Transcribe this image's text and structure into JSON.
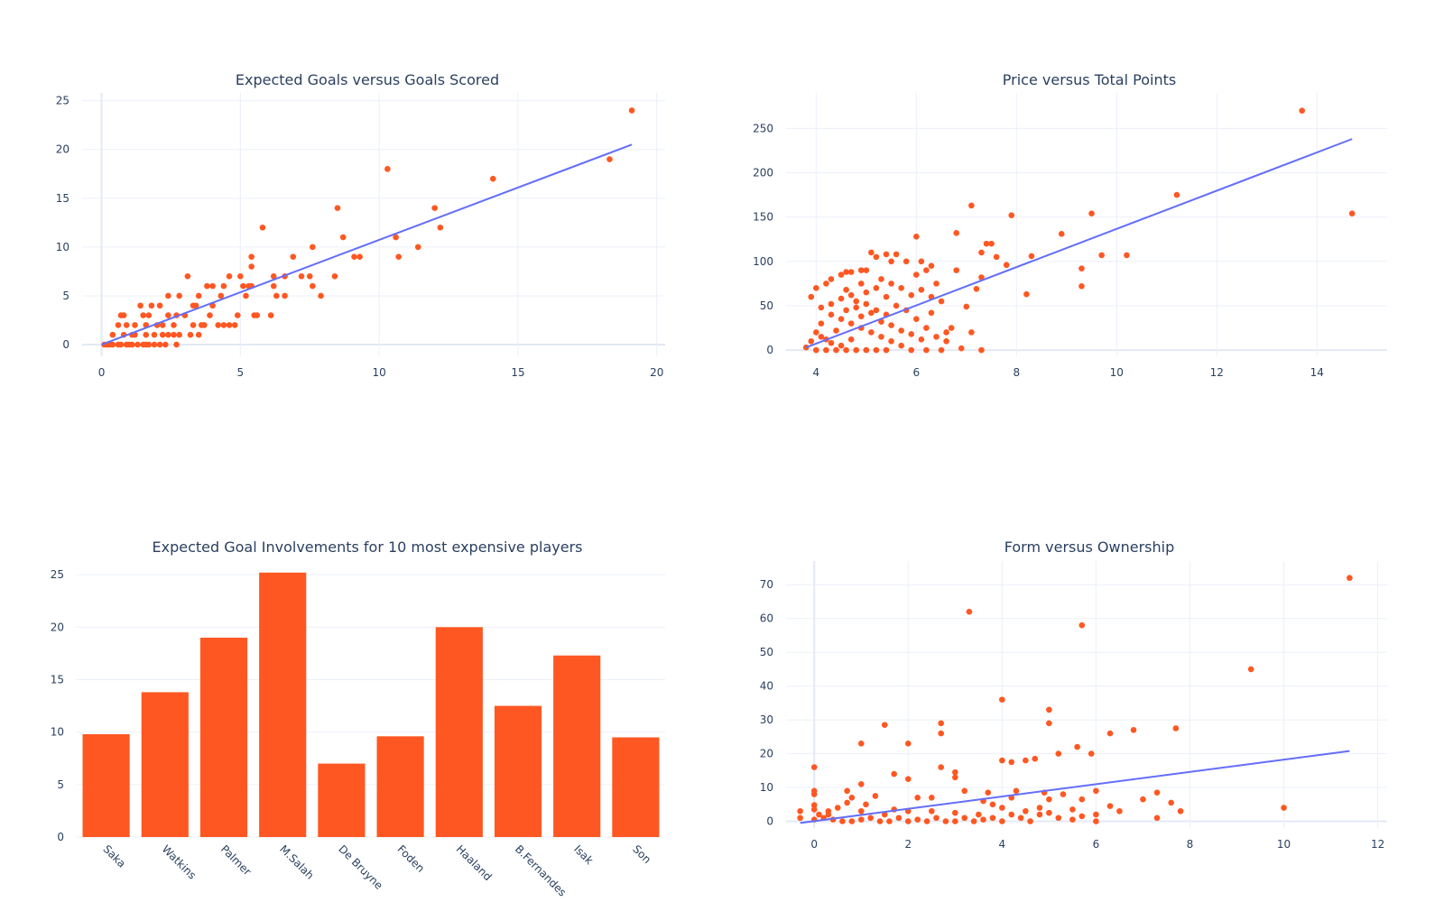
{
  "page": {
    "background": "#ffffff"
  },
  "colors": {
    "marker": "#ff5722",
    "bar": "#ff5722",
    "trend": "#636efa",
    "grid": "#ebf0f8",
    "text": "#2a3f5f"
  },
  "chart_data": [
    {
      "id": "xg-goals",
      "type": "scatter",
      "title": "Expected Goals versus Goals Scored",
      "xlabel": "",
      "ylabel": "",
      "xlim": [
        -0.7,
        20.3
      ],
      "ylim": [
        -1.2,
        25.8
      ],
      "xticks": [
        0,
        5,
        10,
        15,
        20
      ],
      "yticks": [
        0,
        5,
        10,
        15,
        20,
        25
      ],
      "grid": true,
      "trendline": {
        "x": [
          0,
          19.1
        ],
        "y": [
          0,
          20.5
        ]
      },
      "points": [
        [
          19.1,
          24
        ],
        [
          18.3,
          19
        ],
        [
          14.1,
          17
        ],
        [
          10.3,
          18
        ],
        [
          12.0,
          14
        ],
        [
          12.2,
          12
        ],
        [
          10.6,
          11
        ],
        [
          10.7,
          9
        ],
        [
          11.4,
          10
        ],
        [
          8.5,
          14
        ],
        [
          8.7,
          11
        ],
        [
          9.1,
          9
        ],
        [
          9.3,
          9
        ],
        [
          7.6,
          10
        ],
        [
          8.4,
          7
        ],
        [
          7.9,
          5
        ],
        [
          7.5,
          7
        ],
        [
          7.6,
          6
        ],
        [
          7.2,
          7
        ],
        [
          6.9,
          9
        ],
        [
          5.8,
          12
        ],
        [
          5.4,
          9
        ],
        [
          5.4,
          8
        ],
        [
          6.2,
          7
        ],
        [
          6.2,
          6
        ],
        [
          6.6,
          7
        ],
        [
          6.6,
          5
        ],
        [
          6.3,
          5
        ],
        [
          6.1,
          3
        ],
        [
          5.6,
          3
        ],
        [
          5.5,
          3
        ],
        [
          5.3,
          6
        ],
        [
          5.0,
          7
        ],
        [
          5.1,
          6
        ],
        [
          5.2,
          5
        ],
        [
          5.4,
          6
        ],
        [
          4.9,
          3
        ],
        [
          4.8,
          2
        ],
        [
          4.6,
          2
        ],
        [
          4.4,
          2
        ],
        [
          4.2,
          2
        ],
        [
          3.7,
          2
        ],
        [
          3.5,
          1
        ],
        [
          3.2,
          1
        ],
        [
          3.1,
          7
        ],
        [
          4.6,
          7
        ],
        [
          4.3,
          5
        ],
        [
          4.0,
          6
        ],
        [
          3.8,
          6
        ],
        [
          4.4,
          6
        ],
        [
          3.5,
          5
        ],
        [
          3.3,
          4
        ],
        [
          3.4,
          4
        ],
        [
          2.4,
          5
        ],
        [
          2.8,
          5
        ],
        [
          3.0,
          3
        ],
        [
          2.7,
          3
        ],
        [
          2.1,
          4
        ],
        [
          1.4,
          4
        ],
        [
          1.8,
          4
        ],
        [
          0.8,
          3
        ],
        [
          0.7,
          3
        ],
        [
          1.5,
          3
        ],
        [
          1.7,
          3
        ],
        [
          2.4,
          3
        ],
        [
          2.6,
          2
        ],
        [
          3.3,
          2
        ],
        [
          3.6,
          2
        ],
        [
          2.2,
          2
        ],
        [
          1.2,
          2
        ],
        [
          0.6,
          2
        ],
        [
          0.9,
          2
        ],
        [
          1.6,
          2
        ],
        [
          2.0,
          2
        ],
        [
          0.4,
          1
        ],
        [
          0.8,
          1
        ],
        [
          1.2,
          1
        ],
        [
          1.6,
          1
        ],
        [
          2.2,
          1
        ],
        [
          2.4,
          1
        ],
        [
          2.8,
          1
        ],
        [
          0.1,
          0
        ],
        [
          0.4,
          0
        ],
        [
          0.6,
          0
        ],
        [
          0.9,
          0
        ],
        [
          1.1,
          0
        ],
        [
          1.3,
          0
        ],
        [
          1.5,
          0
        ],
        [
          1.7,
          0
        ],
        [
          1.9,
          0
        ],
        [
          2.1,
          0
        ],
        [
          0.3,
          0
        ],
        [
          0.7,
          0
        ],
        [
          1.0,
          0
        ],
        [
          1.6,
          0
        ],
        [
          2.3,
          0
        ],
        [
          2.7,
          0
        ],
        [
          4.0,
          4
        ],
        [
          3.9,
          3
        ],
        [
          0.2,
          0
        ],
        [
          1.1,
          1
        ],
        [
          1.9,
          1
        ],
        [
          2.6,
          1
        ]
      ]
    },
    {
      "id": "price-points",
      "type": "scatter",
      "title": "Price versus Total Points",
      "xlabel": "",
      "ylabel": "",
      "xlim": [
        3.4,
        15.4
      ],
      "ylim": [
        -7,
        290
      ],
      "xticks": [
        4,
        6,
        8,
        10,
        12,
        14
      ],
      "yticks": [
        0,
        50,
        100,
        150,
        200,
        250
      ],
      "grid": true,
      "trendline": {
        "x": [
          3.8,
          14.7
        ],
        "y": [
          3,
          238
        ]
      },
      "points": [
        [
          13.7,
          270
        ],
        [
          14.7,
          154
        ],
        [
          11.2,
          175
        ],
        [
          9.5,
          154
        ],
        [
          10.2,
          107
        ],
        [
          9.7,
          107
        ],
        [
          9.3,
          92
        ],
        [
          9.3,
          72
        ],
        [
          8.9,
          131
        ],
        [
          7.9,
          152
        ],
        [
          8.3,
          106
        ],
        [
          8.2,
          63
        ],
        [
          7.8,
          96
        ],
        [
          7.5,
          120
        ],
        [
          7.4,
          120
        ],
        [
          7.3,
          110
        ],
        [
          7.6,
          105
        ],
        [
          7.1,
          163
        ],
        [
          6.8,
          132
        ],
        [
          7.2,
          69
        ],
        [
          7.3,
          82
        ],
        [
          7.0,
          49
        ],
        [
          7.1,
          20
        ],
        [
          7.3,
          0
        ],
        [
          6.9,
          2
        ],
        [
          6.6,
          10
        ],
        [
          6.6,
          20
        ],
        [
          6.3,
          60
        ],
        [
          6.0,
          128
        ],
        [
          6.1,
          100
        ],
        [
          6.3,
          95
        ],
        [
          6.2,
          90
        ],
        [
          6.0,
          85
        ],
        [
          5.8,
          100
        ],
        [
          5.6,
          108
        ],
        [
          5.5,
          100
        ],
        [
          5.4,
          108
        ],
        [
          5.2,
          105
        ],
        [
          5.1,
          110
        ],
        [
          5.0,
          90
        ],
        [
          4.9,
          90
        ],
        [
          4.7,
          88
        ],
        [
          4.6,
          88
        ],
        [
          4.5,
          85
        ],
        [
          4.3,
          80
        ],
        [
          4.2,
          75
        ],
        [
          4.0,
          70
        ],
        [
          3.9,
          60
        ],
        [
          4.1,
          48
        ],
        [
          4.3,
          40
        ],
        [
          4.5,
          35
        ],
        [
          4.7,
          30
        ],
        [
          4.9,
          25
        ],
        [
          5.1,
          20
        ],
        [
          5.3,
          15
        ],
        [
          5.5,
          10
        ],
        [
          5.7,
          5
        ],
        [
          5.9,
          0
        ],
        [
          4.0,
          0
        ],
        [
          4.2,
          0
        ],
        [
          4.4,
          0
        ],
        [
          4.6,
          0
        ],
        [
          4.8,
          0
        ],
        [
          5.0,
          0
        ],
        [
          5.2,
          0
        ],
        [
          5.4,
          0
        ],
        [
          6.2,
          0
        ],
        [
          6.5,
          0
        ],
        [
          3.8,
          3
        ],
        [
          3.9,
          10
        ],
        [
          4.0,
          20
        ],
        [
          4.1,
          30
        ],
        [
          4.2,
          12
        ],
        [
          4.4,
          22
        ],
        [
          4.6,
          45
        ],
        [
          4.8,
          55
        ],
        [
          5.0,
          65
        ],
        [
          5.2,
          70
        ],
        [
          5.4,
          60
        ],
        [
          5.6,
          50
        ],
        [
          5.8,
          45
        ],
        [
          6.0,
          35
        ],
        [
          6.2,
          25
        ],
        [
          6.4,
          15
        ],
        [
          5.3,
          80
        ],
        [
          5.5,
          75
        ],
        [
          5.7,
          70
        ],
        [
          4.9,
          75
        ],
        [
          4.7,
          62
        ],
        [
          4.5,
          58
        ],
        [
          4.3,
          52
        ],
        [
          4.1,
          15
        ],
        [
          4.3,
          8
        ],
        [
          4.5,
          5
        ],
        [
          4.7,
          12
        ],
        [
          4.9,
          38
        ],
        [
          5.1,
          42
        ],
        [
          5.3,
          32
        ],
        [
          5.5,
          28
        ],
        [
          5.7,
          22
        ],
        [
          5.9,
          18
        ],
        [
          6.1,
          12
        ],
        [
          6.3,
          42
        ],
        [
          6.5,
          55
        ],
        [
          6.7,
          25
        ],
        [
          6.8,
          90
        ],
        [
          6.4,
          75
        ],
        [
          6.1,
          68
        ],
        [
          5.9,
          62
        ],
        [
          4.6,
          68
        ],
        [
          4.8,
          48
        ],
        [
          5.0,
          52
        ],
        [
          5.2,
          45
        ],
        [
          5.4,
          40
        ]
      ]
    },
    {
      "id": "xgi-expensive",
      "type": "bar",
      "title": "Expected Goal Involvements for 10 most expensive players",
      "xlabel": "",
      "ylabel": "",
      "categories": [
        "Saka",
        "Watkins",
        "Palmer",
        "M.Salah",
        "De Bruyne",
        "Foden",
        "Haaland",
        "B.Fernandes",
        "Isak",
        "Son"
      ],
      "values": [
        9.8,
        13.8,
        19.0,
        25.2,
        7.0,
        9.6,
        20.0,
        12.5,
        17.3,
        9.5
      ],
      "ylim": [
        0,
        26.3
      ],
      "yticks": [
        0,
        5,
        10,
        15,
        20,
        25
      ],
      "grid": true
    },
    {
      "id": "form-ownership",
      "type": "scatter",
      "title": "Form versus Ownership",
      "xlabel": "",
      "ylabel": "",
      "xlim": [
        -0.6,
        12.2
      ],
      "ylim": [
        -2,
        77
      ],
      "xticks": [
        0,
        2,
        4,
        6,
        8,
        10,
        12
      ],
      "yticks": [
        0,
        10,
        20,
        30,
        40,
        50,
        60,
        70
      ],
      "grid": true,
      "trendline": {
        "x": [
          -0.3,
          11.4
        ],
        "y": [
          -0.5,
          20.8
        ]
      },
      "points": [
        [
          11.4,
          72
        ],
        [
          9.3,
          45
        ],
        [
          3.3,
          62
        ],
        [
          5.7,
          58
        ],
        [
          4.0,
          36
        ],
        [
          5.0,
          33
        ],
        [
          5.0,
          29
        ],
        [
          2.7,
          29
        ],
        [
          2.7,
          26
        ],
        [
          1.5,
          28.5
        ],
        [
          7.7,
          27.5
        ],
        [
          6.8,
          27
        ],
        [
          6.3,
          26
        ],
        [
          1.0,
          23
        ],
        [
          2.0,
          23
        ],
        [
          5.6,
          22
        ],
        [
          5.9,
          20
        ],
        [
          5.2,
          20
        ],
        [
          4.7,
          18.5
        ],
        [
          4.5,
          18
        ],
        [
          4.0,
          18
        ],
        [
          4.2,
          17.5
        ],
        [
          0.0,
          16
        ],
        [
          2.7,
          16
        ],
        [
          3.0,
          14.5
        ],
        [
          1.7,
          14
        ],
        [
          3.0,
          13
        ],
        [
          2.0,
          12.5
        ],
        [
          1.0,
          11
        ],
        [
          0.0,
          9
        ],
        [
          0.7,
          9
        ],
        [
          3.2,
          9
        ],
        [
          4.3,
          9
        ],
        [
          3.7,
          8.5
        ],
        [
          6.0,
          9
        ],
        [
          7.3,
          8.5
        ],
        [
          4.9,
          8.5
        ],
        [
          5.3,
          8
        ],
        [
          6.5,
          3
        ],
        [
          7.3,
          1
        ],
        [
          7.8,
          3
        ],
        [
          7.6,
          5.5
        ],
        [
          10.0,
          4
        ],
        [
          6.3,
          4.5
        ],
        [
          7.0,
          6.5
        ],
        [
          5.7,
          6.5
        ],
        [
          5.0,
          6.5
        ],
        [
          4.2,
          7
        ],
        [
          3.6,
          6
        ],
        [
          2.5,
          7
        ],
        [
          2.2,
          7
        ],
        [
          1.7,
          3.5
        ],
        [
          1.1,
          5
        ],
        [
          0.7,
          5.5
        ],
        [
          0.5,
          4
        ],
        [
          0.3,
          3
        ],
        [
          0.1,
          2
        ],
        [
          0.2,
          1
        ],
        [
          0.4,
          0.5
        ],
        [
          0.6,
          0
        ],
        [
          0.8,
          0
        ],
        [
          1.0,
          0.5
        ],
        [
          1.2,
          1
        ],
        [
          1.4,
          0
        ],
        [
          1.6,
          0
        ],
        [
          1.8,
          1
        ],
        [
          2.0,
          0
        ],
        [
          2.2,
          0.5
        ],
        [
          2.4,
          0
        ],
        [
          2.6,
          1
        ],
        [
          2.8,
          0
        ],
        [
          3.0,
          0
        ],
        [
          3.2,
          1
        ],
        [
          3.4,
          0
        ],
        [
          3.6,
          0.5
        ],
        [
          3.8,
          1
        ],
        [
          4.0,
          0
        ],
        [
          4.2,
          2
        ],
        [
          4.4,
          1
        ],
        [
          4.6,
          0
        ],
        [
          4.8,
          2
        ],
        [
          5.2,
          1
        ],
        [
          5.5,
          0.5
        ],
        [
          5.7,
          1.5
        ],
        [
          6.0,
          0
        ],
        [
          6.0,
          2
        ],
        [
          -0.3,
          3
        ],
        [
          -0.3,
          1
        ],
        [
          0.0,
          0.5
        ],
        [
          0.0,
          3.5
        ],
        [
          0.0,
          4.8
        ],
        [
          0.3,
          2
        ],
        [
          1.0,
          3
        ],
        [
          1.5,
          2
        ],
        [
          2.0,
          3
        ],
        [
          2.5,
          3
        ],
        [
          3.0,
          2.5
        ],
        [
          3.5,
          2
        ],
        [
          4.0,
          4
        ],
        [
          4.5,
          3
        ],
        [
          5.0,
          2.5
        ],
        [
          5.5,
          3.5
        ],
        [
          0.8,
          7
        ],
        [
          1.3,
          7.5
        ],
        [
          0.0,
          8
        ],
        [
          3.8,
          5
        ],
        [
          4.8,
          4
        ]
      ]
    }
  ]
}
